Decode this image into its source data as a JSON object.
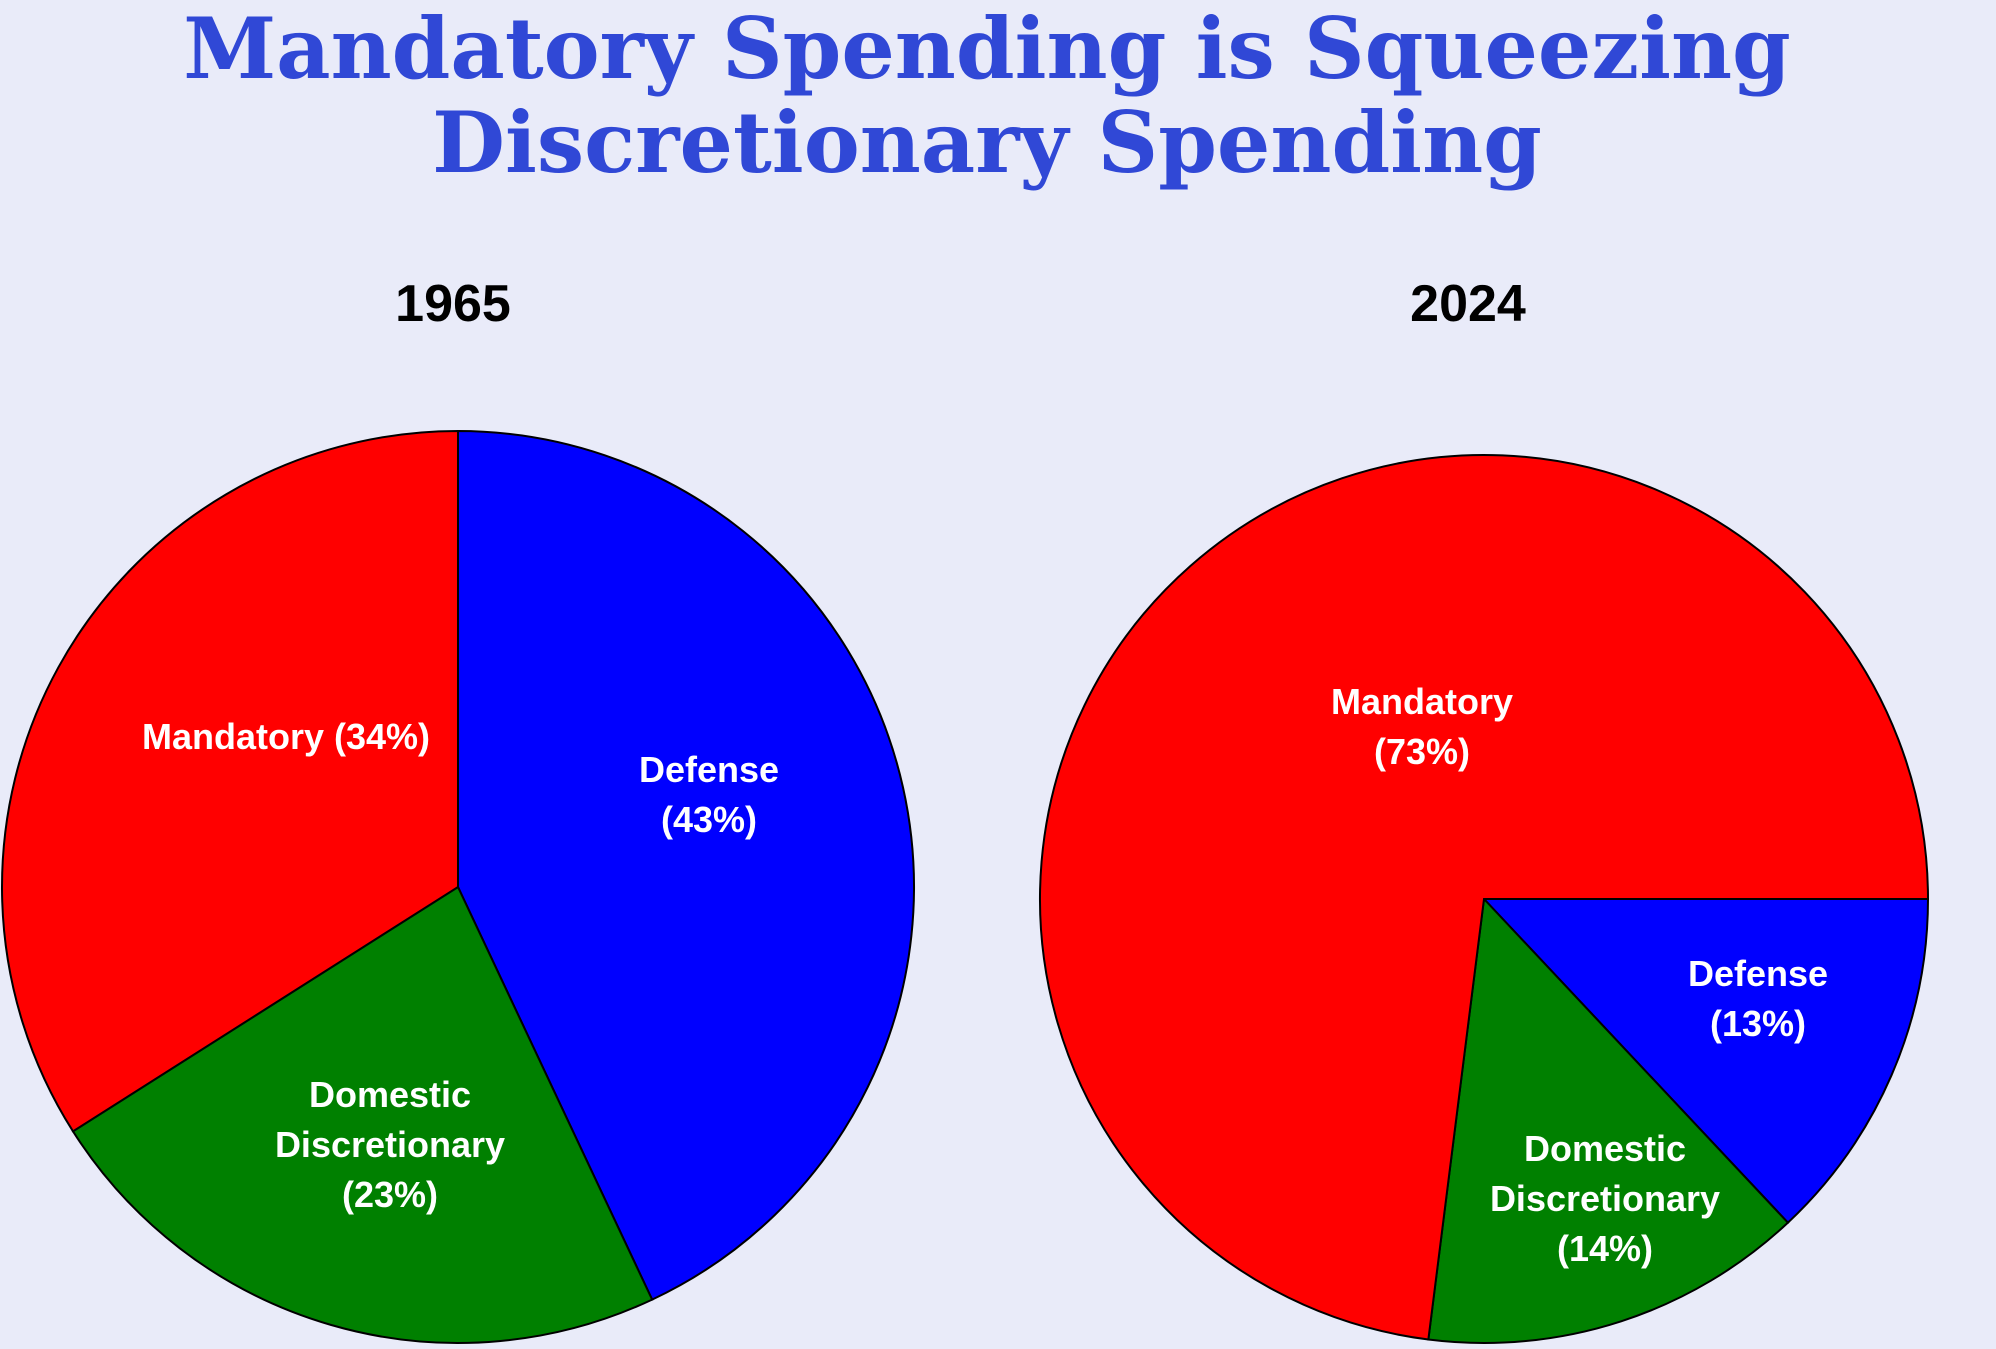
{
  "chart_data": {
    "type": "pie",
    "title_lines": [
      "Mandatory Spending is Squeezing",
      "Discretionary Spending"
    ],
    "colors": {
      "Mandatory": "#ff0000",
      "Defense": "#0000ff",
      "Domestic Discretionary": "#008000",
      "title": "#3048d6",
      "background": "#e9ebf9"
    },
    "charts": [
      {
        "title": "1965",
        "start_angle_deg": 0,
        "direction": "clockwise",
        "slices": [
          {
            "name": "Defense",
            "value": 43,
            "label_lines": [
              "Defense",
              "(43%)"
            ]
          },
          {
            "name": "Domestic Discretionary",
            "value": 23,
            "label_lines": [
              "Domestic",
              "Discretionary",
              "(23%)"
            ]
          },
          {
            "name": "Mandatory",
            "value": 34,
            "label_lines": [
              "Mandatory (34%)"
            ]
          }
        ]
      },
      {
        "title": "2024",
        "start_angle_deg": 90,
        "direction": "clockwise",
        "slices": [
          {
            "name": "Defense",
            "value": 13,
            "label_lines": [
              "Defense",
              "(13%)"
            ]
          },
          {
            "name": "Domestic Discretionary",
            "value": 14,
            "label_lines": [
              "Domestic",
              "Discretionary",
              "(14%)"
            ]
          },
          {
            "name": "Mandatory",
            "value": 73,
            "label_lines": [
              "Mandatory",
              "(73%)"
            ]
          }
        ]
      }
    ]
  }
}
